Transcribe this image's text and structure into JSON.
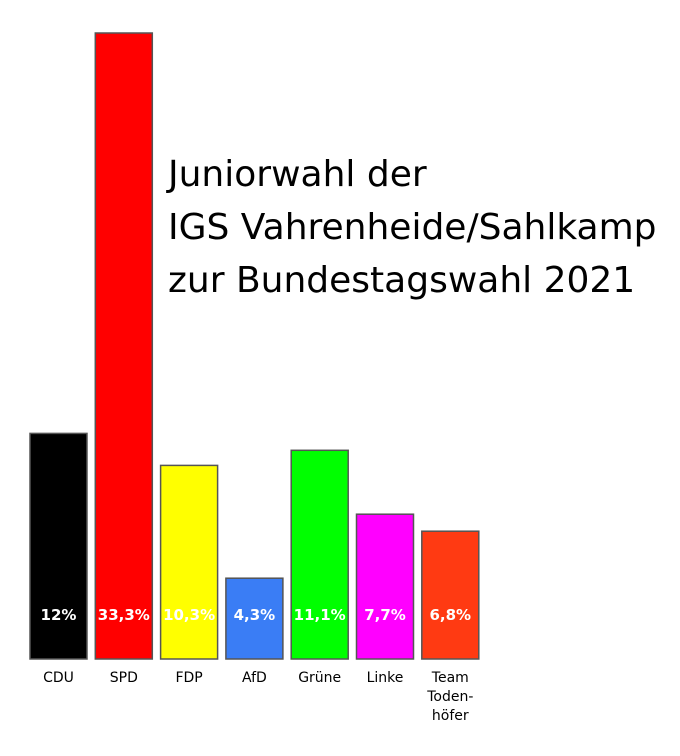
{
  "chart_data": {
    "type": "bar",
    "title_lines": [
      "Juniorwahl der",
      "IGS Vahrenheide/Sahlkamp",
      "zur Bundestagswahl 2021"
    ],
    "categories": [
      "CDU",
      "SPD",
      "FDP",
      "AfD",
      "Grüne",
      "Linke",
      "Team Todenhöfer"
    ],
    "category_label_lines": [
      [
        "CDU"
      ],
      [
        "SPD"
      ],
      [
        "FDP"
      ],
      [
        "AfD"
      ],
      [
        "Grüne"
      ],
      [
        "Linke"
      ],
      [
        "Team",
        "Toden-",
        "höfer"
      ]
    ],
    "values": [
      12,
      33.3,
      10.3,
      4.3,
      11.1,
      7.7,
      6.8
    ],
    "value_labels": [
      "12%",
      "33,3%",
      "10,3%",
      "4,3%",
      "11,1%",
      "7,7%",
      "6,8%"
    ],
    "colors": [
      "#000000",
      "#ff0000",
      "#ffff00",
      "#3a7df5",
      "#00ff00",
      "#ff00ff",
      "#ff3a12"
    ],
    "value_label_color": "#ffffff",
    "bar_outline_color": "#555555",
    "xlabel": "",
    "ylabel": "",
    "grid": false,
    "legend": "none"
  }
}
